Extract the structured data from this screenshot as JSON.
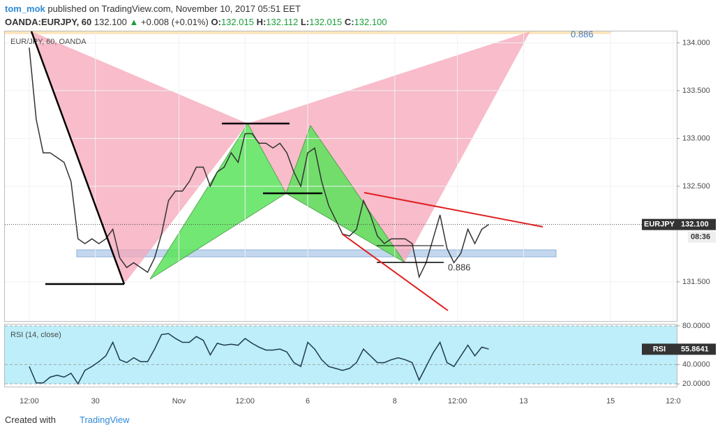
{
  "header": {
    "author": "tom_mok",
    "published": "published on TradingView.com, November 10, 2017 05:51 EET",
    "symbol": "OANDA:EURJPY, 60",
    "price": "132.100",
    "change": "+0.008 (+0.01%)",
    "ohlc": [
      {
        "label": "O:",
        "value": "132.015"
      },
      {
        "label": "H:",
        "value": "132.112"
      },
      {
        "label": "L:",
        "value": "132.015"
      },
      {
        "label": "C:",
        "value": "132.100"
      }
    ]
  },
  "chart_data": [
    {
      "type": "line",
      "title": "EUR/JPY, 60, OANDA",
      "x": [
        7,
        9,
        11,
        13,
        15,
        17,
        19,
        21,
        23,
        25,
        27,
        29,
        31,
        33,
        35,
        37,
        39,
        41,
        43,
        45,
        47,
        49,
        51,
        53,
        55,
        57,
        59,
        61,
        63,
        65,
        67,
        69,
        71,
        73,
        75,
        77,
        79,
        81,
        83,
        85,
        87,
        89,
        91,
        93,
        95,
        97,
        99,
        101,
        103,
        105,
        107,
        109,
        111,
        113,
        115,
        117,
        119,
        121,
        123,
        125,
        127,
        129,
        131,
        133,
        135,
        137,
        139
      ],
      "series": [
        {
          "name": "EURJPY",
          "color": "#333333",
          "values": [
            133.95,
            133.2,
            132.85,
            132.85,
            132.8,
            132.75,
            132.55,
            131.95,
            131.9,
            131.95,
            131.9,
            131.95,
            132.05,
            131.75,
            131.65,
            131.7,
            131.65,
            131.6,
            131.75,
            132.0,
            132.35,
            132.45,
            132.45,
            132.55,
            132.7,
            132.7,
            132.5,
            132.65,
            132.7,
            132.85,
            132.75,
            133.05,
            133.05,
            132.95,
            132.95,
            132.9,
            132.95,
            132.85,
            132.65,
            132.5,
            132.85,
            132.9,
            132.55,
            132.3,
            132.15,
            132.0,
            131.98,
            132.05,
            132.35,
            132.2,
            131.98,
            131.9,
            131.95,
            131.95,
            131.95,
            131.9,
            131.55,
            131.7,
            131.95,
            132.2,
            131.85,
            131.7,
            131.8,
            132.05,
            131.9,
            132.05,
            132.1
          ]
        }
      ],
      "xlim": [
        0,
        193
      ],
      "ylim": [
        131.09,
        134.12
      ],
      "xticks": [
        {
          "value": 7,
          "label": "12:00"
        },
        {
          "value": 26,
          "label": "30"
        },
        {
          "value": 50,
          "label": "Nov"
        },
        {
          "value": 69,
          "label": "12:00"
        },
        {
          "value": 87,
          "label": "6"
        },
        {
          "value": 112,
          "label": "8"
        },
        {
          "value": 130,
          "label": "12:00"
        },
        {
          "value": 149,
          "label": "13"
        },
        {
          "value": 174,
          "label": "15"
        },
        {
          "value": 192,
          "label": "12:0"
        }
      ],
      "yticks": [
        {
          "value": 134,
          "label": "134.000"
        },
        {
          "value": 133.5,
          "label": "133.500"
        },
        {
          "value": 133,
          "label": "133.000"
        },
        {
          "value": 132.5,
          "label": "132.500"
        },
        {
          "value": 131.5,
          "label": "131.500"
        }
      ],
      "last": {
        "name": "EURJPY",
        "value": 132.1,
        "label": "132.100",
        "countdown": "08:36"
      },
      "annotations": [
        "0.886",
        "0.886"
      ]
    },
    {
      "type": "line",
      "title": "RSI (14, close)",
      "x": [
        7,
        9,
        11,
        13,
        15,
        17,
        19,
        21,
        23,
        25,
        27,
        29,
        31,
        33,
        35,
        37,
        39,
        41,
        43,
        45,
        47,
        49,
        51,
        53,
        55,
        57,
        59,
        61,
        63,
        65,
        67,
        69,
        71,
        73,
        75,
        77,
        79,
        81,
        83,
        85,
        87,
        89,
        91,
        93,
        95,
        97,
        99,
        101,
        103,
        105,
        107,
        109,
        111,
        113,
        115,
        117,
        119,
        121,
        123,
        125,
        127,
        129,
        131,
        133,
        135,
        137,
        139
      ],
      "series": [
        {
          "name": "RSI",
          "color": "#1f3a4d",
          "values": [
            38,
            21,
            21,
            27,
            29,
            27,
            31,
            20,
            34,
            38,
            43,
            49,
            63,
            45,
            42,
            47,
            43,
            43,
            56,
            71,
            72,
            67,
            63,
            63,
            69,
            65,
            50,
            62,
            60,
            61,
            60,
            67,
            62,
            58,
            55,
            55,
            56,
            53,
            42,
            38,
            63,
            56,
            45,
            38,
            36,
            34,
            36,
            42,
            56,
            49,
            42,
            42,
            45,
            47,
            45,
            42,
            24,
            38,
            52,
            63,
            42,
            38,
            49,
            60,
            49,
            58,
            56
          ]
        }
      ],
      "xlim": [
        0,
        193
      ],
      "ylim": [
        18.6,
        81.4
      ],
      "yticks": [
        {
          "value": 80,
          "label": "80.0000"
        },
        {
          "value": 40,
          "label": "40.0000"
        },
        {
          "value": 20,
          "label": "20.0000"
        }
      ],
      "band_color": "#bdeefa",
      "last": {
        "name": "RSI",
        "value": 55.8641,
        "label": "55.8641"
      }
    }
  ],
  "footer": {
    "created": "Created with",
    "brand": "TradingView"
  }
}
